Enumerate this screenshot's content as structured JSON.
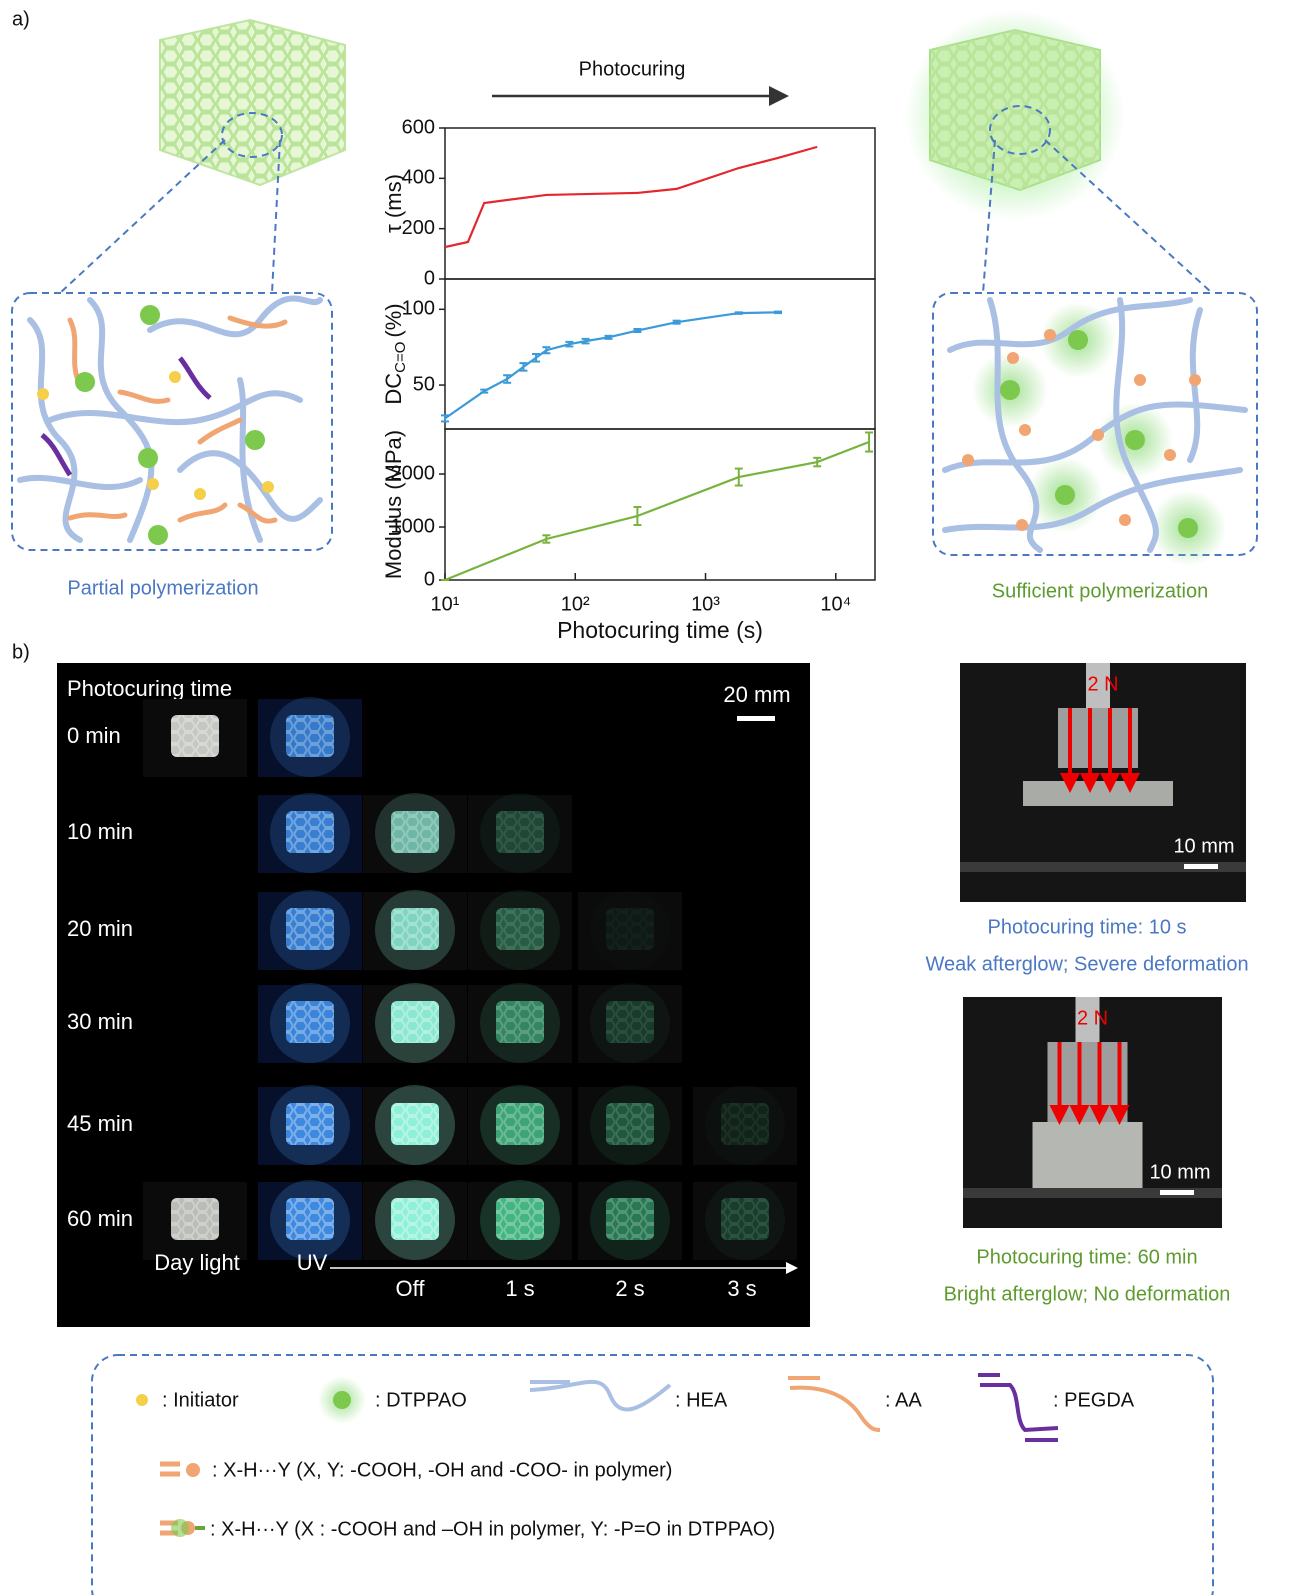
{
  "panel_a": {
    "label": "a)",
    "arrow_label": "Photocuring",
    "left_caption": "Partial polymerization",
    "right_caption": "Sufficient polymerization"
  },
  "chart_data": [
    {
      "type": "line",
      "log_x": true,
      "color": "#e5272d",
      "x": [
        10,
        15,
        20,
        60,
        300,
        600,
        1800,
        3600,
        7200
      ],
      "values": [
        127,
        147,
        302,
        334,
        342,
        358,
        441,
        481,
        525
      ],
      "xlim": [
        10,
        20000
      ],
      "ylim": [
        0,
        600
      ],
      "yticks": [
        0,
        200,
        400,
        600
      ],
      "y_label": "τ (ms)"
    },
    {
      "type": "line",
      "log_x": true,
      "color": "#3b9ad8",
      "x": [
        10,
        20,
        30,
        40,
        50,
        60,
        90,
        120,
        180,
        300,
        600,
        1800,
        3600
      ],
      "values": [
        28,
        46,
        54,
        62,
        68,
        73,
        77,
        79,
        81.5,
        86,
        91.5,
        97.5,
        98
      ],
      "errors": [
        2,
        1,
        2.5,
        2.5,
        2.5,
        2,
        1.5,
        1.5,
        1,
        1,
        1,
        0.5,
        0.5
      ],
      "xlim": [
        10,
        20000
      ],
      "ylim": [
        21,
        120
      ],
      "yticks": [
        50,
        100
      ],
      "y_label": "DC",
      "y_label_sub": "C=O",
      "y_label_unit": "(%)"
    },
    {
      "type": "line",
      "log_x": true,
      "color": "#78b33e",
      "x": [
        10,
        60,
        300,
        1800,
        7200,
        18000
      ],
      "values": [
        0,
        774,
        1208,
        1943,
        2226,
        2604
      ],
      "errors": [
        0,
        70,
        170,
        160,
        80,
        180
      ],
      "xlim": [
        10,
        20000
      ],
      "ylim": [
        0,
        2850
      ],
      "yticks": [
        0,
        1000,
        2000
      ],
      "xticks": [
        {
          "value": 10,
          "label": "10¹"
        },
        {
          "value": 100,
          "label": "10²"
        },
        {
          "value": 1000,
          "label": "10³"
        },
        {
          "value": 10000,
          "label": "10⁴"
        }
      ],
      "y_label": "Modulus (MPa)",
      "x_label": "Photocuring time (s)"
    }
  ],
  "panel_b": {
    "label": "b)",
    "grid_title": "Photocuring time",
    "scale_bar": "20 mm",
    "rows": [
      "0 min",
      "10 min",
      "20 min",
      "30 min",
      "45 min",
      "60 min"
    ],
    "columns": [
      "Day light",
      "UV",
      "Off",
      "1 s",
      "2 s",
      "3 s"
    ],
    "tests": [
      {
        "force": "2 N",
        "scale_bar": "10 mm",
        "caption": "Photocuring time: 10 s",
        "result": "Weak afterglow; Severe deformation"
      },
      {
        "force": "2 N",
        "scale_bar": "10 mm",
        "caption": "Photocuring time: 60 min",
        "result": "Bright afterglow; No deformation"
      }
    ]
  },
  "legend": {
    "items": [
      ": Initiator",
      ": DTPPAO",
      ": HEA",
      ": AA",
      ": PEGDA",
      ": X-H···Y (X, Y: -COOH, -OH and -COO- in polymer)",
      ": X-H···Y (X : -COOH and –OH in polymer, Y: -P=O in DTPPAO)"
    ]
  }
}
